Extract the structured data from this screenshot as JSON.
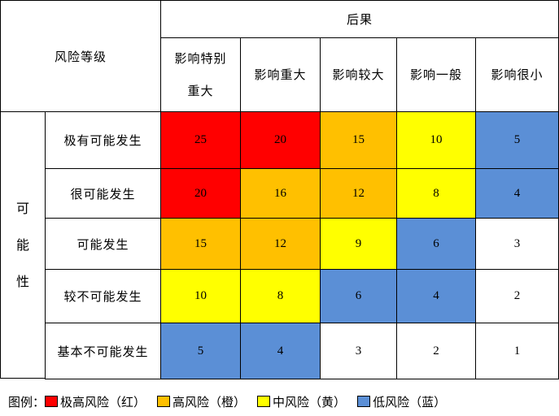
{
  "header": {
    "corner_label": "风险等级",
    "consequence_label": "后果",
    "likelihood_label": "可能性",
    "columns": [
      "影响特别重大",
      "影响重大",
      "影响较大",
      "影响一般",
      "影响很小"
    ]
  },
  "rows": [
    {
      "label": "极有可能发生",
      "values": [
        "25",
        "20",
        "15",
        "10",
        "5"
      ],
      "levels": [
        "extreme",
        "extreme",
        "high",
        "medium",
        "low"
      ]
    },
    {
      "label": "很可能发生",
      "values": [
        "20",
        "16",
        "12",
        "8",
        "4"
      ],
      "levels": [
        "extreme",
        "high",
        "high",
        "medium",
        "low"
      ]
    },
    {
      "label": "可能发生",
      "values": [
        "15",
        "12",
        "9",
        "6",
        "3"
      ],
      "levels": [
        "high",
        "high",
        "medium",
        "low",
        "none"
      ]
    },
    {
      "label": "较不可能发生",
      "values": [
        "10",
        "8",
        "6",
        "4",
        "2"
      ],
      "levels": [
        "medium",
        "medium",
        "low",
        "low",
        "none"
      ]
    },
    {
      "label": "基本不可能发生",
      "values": [
        "5",
        "4",
        "3",
        "2",
        "1"
      ],
      "levels": [
        "low",
        "low",
        "none",
        "none",
        "none"
      ]
    }
  ],
  "colors": {
    "extreme": "#FF0000",
    "high": "#FFC000",
    "medium": "#FFFF00",
    "low": "#5B8FD6",
    "none": "#FFFFFF"
  },
  "legend": {
    "title": "图例：",
    "items": [
      {
        "level": "extreme",
        "label": "极高风险（红）"
      },
      {
        "level": "high",
        "label": "高风险（橙）"
      },
      {
        "level": "medium",
        "label": "中风险（黄）"
      },
      {
        "level": "low",
        "label": "低风险（蓝）"
      }
    ]
  }
}
